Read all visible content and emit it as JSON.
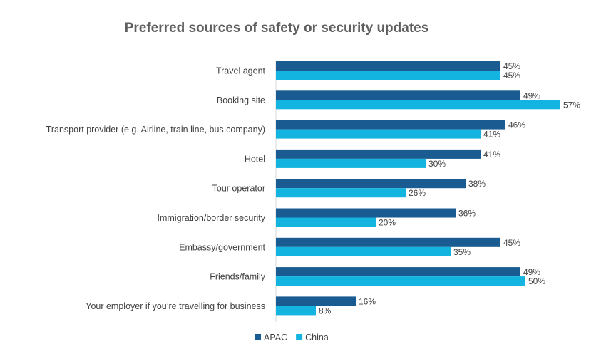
{
  "chart_data": {
    "type": "bar",
    "orientation": "horizontal",
    "title": "Preferred sources of safety or security updates",
    "categories": [
      "Travel agent",
      "Booking site",
      "Transport provider (e.g. Airline, train line, bus company)",
      "Hotel",
      "Tour operator",
      "Immigration/border security",
      "Embassy/government",
      "Friends/family",
      "Your employer if you’re travelling for business"
    ],
    "series": [
      {
        "name": "APAC",
        "color": "#1a5c91",
        "values": [
          45,
          49,
          46,
          41,
          38,
          36,
          45,
          49,
          16
        ],
        "labels": [
          "45%",
          "49%",
          "46%",
          "41%",
          "38%",
          "36%",
          "45%",
          "49%",
          "16%"
        ]
      },
      {
        "name": "China",
        "color": "#13b4e0",
        "values": [
          45,
          57,
          41,
          30,
          26,
          20,
          35,
          50,
          8
        ],
        "labels": [
          "45%",
          "57%",
          "41%",
          "30%",
          "26%",
          "20%",
          "35%",
          "50%",
          "8%"
        ]
      }
    ],
    "xlim": [
      0,
      60
    ],
    "unit": "%",
    "grid": false,
    "legend_position": "bottom"
  }
}
